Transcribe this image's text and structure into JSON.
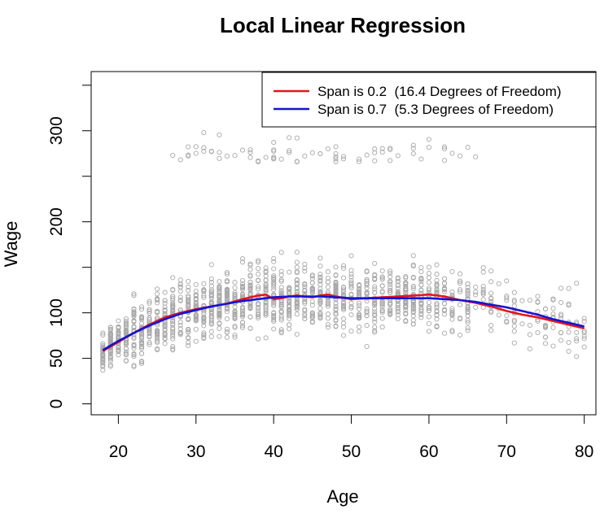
{
  "chart_data": {
    "type": "scatter",
    "title": "Local Linear Regression",
    "xlabel": "Age",
    "ylabel": "Wage",
    "xlim": [
      16.5,
      81.5
    ],
    "ylim": [
      -12,
      365
    ],
    "x_ticks": [
      20,
      30,
      40,
      50,
      60,
      70,
      80
    ],
    "y_ticks": [
      0,
      50,
      100,
      200,
      300
    ],
    "y_minor_ticks": [
      150,
      250,
      350
    ],
    "grid": false,
    "legend_position": "top-right",
    "point_color": "#a8a8a8",
    "scatter_description": "approximately 3000 observations of wage vs age (ages 18-80), bulk between 50 and 200, with a separate high-earner cluster near 250-310",
    "series": [
      {
        "name": "Span is 0.2  (16.4 Degrees of Freedom)",
        "color": "#e8141c",
        "x": [
          18,
          20,
          22,
          24,
          26,
          28,
          30,
          32,
          34,
          36,
          37,
          38,
          39,
          40,
          41,
          42,
          43,
          44,
          45,
          46,
          47,
          48,
          50,
          52,
          54,
          56,
          58,
          60,
          62,
          64,
          66,
          68,
          70,
          72,
          74,
          76,
          78,
          80
        ],
        "y": [
          58,
          68,
          78,
          87,
          95,
          100,
          104,
          107,
          110,
          115,
          117,
          119,
          120,
          115,
          116,
          118,
          119,
          118,
          117,
          119,
          120,
          118,
          115,
          116,
          117,
          118,
          119,
          120,
          118,
          114,
          111,
          107,
          102,
          98,
          95,
          91,
          87,
          83
        ]
      },
      {
        "name": "Span is 0.7  (5.3 Degrees of Freedom)",
        "color": "#1414d2",
        "x": [
          18,
          20,
          22,
          24,
          26,
          28,
          30,
          32,
          34,
          36,
          38,
          40,
          42,
          44,
          46,
          48,
          50,
          52,
          54,
          56,
          58,
          60,
          62,
          64,
          66,
          68,
          70,
          72,
          74,
          76,
          78,
          80
        ],
        "y": [
          59,
          69,
          78,
          86,
          93,
          99,
          103,
          107,
          110,
          113,
          115,
          117,
          118,
          118,
          118,
          117,
          116,
          116,
          116,
          116,
          116,
          116,
          115,
          114,
          112,
          109,
          106,
          102,
          98,
          93,
          89,
          85
        ]
      }
    ]
  }
}
